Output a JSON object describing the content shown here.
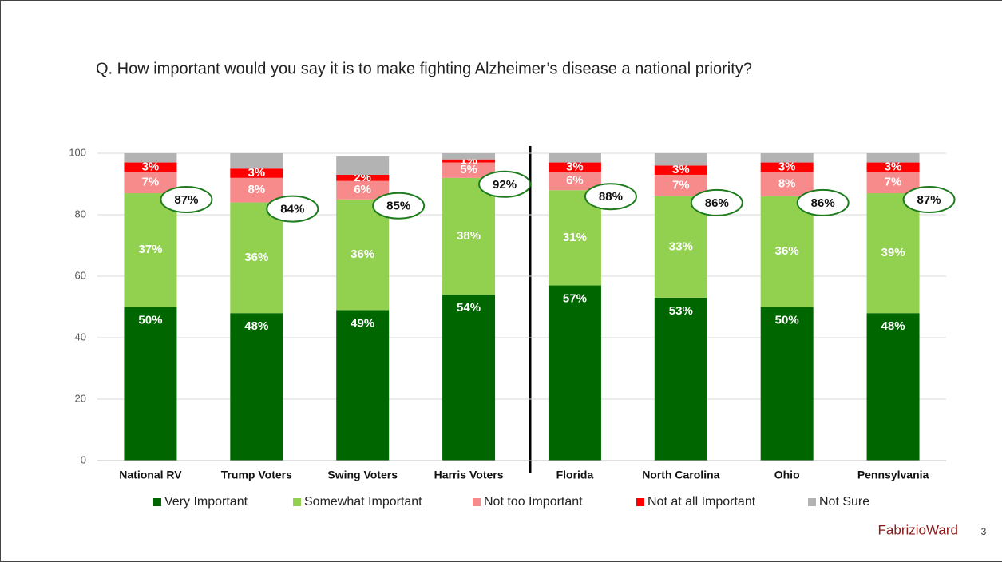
{
  "chart_data": {
    "type": "bar",
    "stacked": true,
    "title": "Q. How important would you say it is to make fighting Alzheimer’s disease a national priority?",
    "categories": [
      "National RV",
      "Trump Voters",
      "Swing Voters",
      "Harris Voters",
      "Florida",
      "North Carolina",
      "Ohio",
      "Pennsylvania"
    ],
    "series": [
      {
        "name": "Very Important",
        "color": "#006600",
        "values": [
          50,
          48,
          49,
          54,
          57,
          53,
          50,
          48
        ],
        "value_labels": [
          "50%",
          "48%",
          "49%",
          "54%",
          "57%",
          "53%",
          "50%",
          "48%"
        ]
      },
      {
        "name": "Somewhat Important",
        "color": "#92d050",
        "values": [
          37,
          36,
          36,
          38,
          31,
          33,
          36,
          39
        ],
        "value_labels": [
          "37%",
          "36%",
          "36%",
          "38%",
          "31%",
          "33%",
          "36%",
          "39%"
        ]
      },
      {
        "name": "Not too Important",
        "color": "#f78a8a",
        "values": [
          7,
          8,
          6,
          5,
          6,
          7,
          8,
          7
        ],
        "value_labels": [
          "7%",
          "8%",
          "6%",
          "5%",
          "6%",
          "7%",
          "8%",
          "7%"
        ]
      },
      {
        "name": "Not at all Important",
        "color": "#ff0000",
        "values": [
          3,
          3,
          2,
          1,
          3,
          3,
          3,
          3
        ],
        "value_labels": [
          "3%",
          "3%",
          "2%",
          "1%",
          "3%",
          "3%",
          "3%",
          "3%"
        ]
      },
      {
        "name": "Not Sure",
        "color": "#b3b3b3",
        "values": [
          3,
          5,
          6,
          2,
          3,
          4,
          3,
          3
        ]
      }
    ],
    "totals": {
      "values": [
        87,
        84,
        85,
        92,
        88,
        86,
        86,
        87
      ],
      "value_labels": [
        "87%",
        "84%",
        "85%",
        "92%",
        "88%",
        "86%",
        "86%",
        "87%"
      ],
      "color": "#1e7b1e"
    },
    "ylim": [
      0,
      100
    ],
    "yticks": [
      0,
      20,
      40,
      60,
      80,
      100
    ],
    "grid": true,
    "legend": "bottom",
    "logo": "FabrizioWard",
    "page_number": "3"
  }
}
